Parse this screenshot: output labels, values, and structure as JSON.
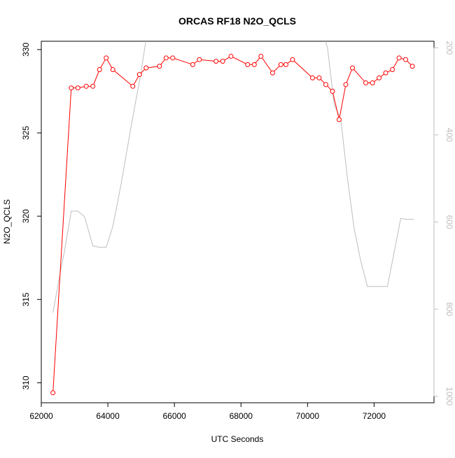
{
  "chart_data": {
    "type": "line",
    "title": "ORCAS RF18 N2O_QCLS",
    "xlabel": "UTC Seconds",
    "ylabel": "N2O_QCLS",
    "xlim": [
      62000,
      73800
    ],
    "ylim": [
      308.8,
      330.5
    ],
    "x_ticks": [
      62000,
      64000,
      66000,
      68000,
      70000,
      72000
    ],
    "y_ticks": [
      310,
      315,
      320,
      325,
      330
    ],
    "y2lim": [
      1015,
      185
    ],
    "y2_ticks": [
      200,
      400,
      600,
      800,
      1000
    ],
    "colors": {
      "primary": "#ff0000",
      "secondary": "#bebebe",
      "axis": "#000000"
    },
    "series": [
      {
        "axis": "left",
        "color": "#ff0000",
        "marker": "open-circle",
        "points": [
          [
            62350,
            309.4
          ],
          [
            62900,
            327.7
          ],
          [
            63100,
            327.7
          ],
          [
            63350,
            327.8
          ],
          [
            63550,
            327.8
          ],
          [
            63750,
            328.8
          ],
          [
            63950,
            329.5
          ],
          [
            64150,
            328.8
          ],
          [
            64750,
            327.8
          ],
          [
            64950,
            328.5
          ],
          [
            65150,
            328.9
          ],
          [
            65550,
            329.0
          ],
          [
            65750,
            329.5
          ],
          [
            65950,
            329.5
          ],
          [
            66550,
            329.1
          ],
          [
            66750,
            329.4
          ],
          [
            67250,
            329.3
          ],
          [
            67450,
            329.3
          ],
          [
            67700,
            329.6
          ],
          [
            68200,
            329.1
          ],
          [
            68400,
            329.1
          ],
          [
            68600,
            329.6
          ],
          [
            68950,
            328.6
          ],
          [
            69200,
            329.1
          ],
          [
            69350,
            329.1
          ],
          [
            69550,
            329.4
          ],
          [
            70150,
            328.3
          ],
          [
            70350,
            328.3
          ],
          [
            70550,
            327.9
          ],
          [
            70750,
            327.5
          ],
          [
            70950,
            325.8
          ],
          [
            71150,
            327.9
          ],
          [
            71350,
            328.9
          ],
          [
            71750,
            328.0
          ],
          [
            71950,
            328.0
          ],
          [
            72150,
            328.3
          ],
          [
            72350,
            328.6
          ],
          [
            72550,
            328.8
          ],
          [
            72750,
            329.5
          ],
          [
            72950,
            329.4
          ],
          [
            73150,
            329.0
          ]
        ]
      },
      {
        "axis": "right",
        "color": "#bebebe",
        "marker": "none",
        "points": [
          [
            62350,
            808
          ],
          [
            62500,
            745
          ],
          [
            62700,
            665
          ],
          [
            62900,
            575
          ],
          [
            63100,
            575
          ],
          [
            63300,
            588
          ],
          [
            63550,
            655
          ],
          [
            63750,
            658
          ],
          [
            63950,
            658
          ],
          [
            64150,
            610
          ],
          [
            64400,
            512
          ],
          [
            64700,
            380
          ],
          [
            65000,
            255
          ],
          [
            65250,
            130
          ],
          [
            65500,
            5
          ],
          [
            66000,
            -150
          ],
          [
            66500,
            155
          ],
          [
            66550,
            175
          ],
          [
            66750,
            175
          ],
          [
            66800,
            155
          ],
          [
            67000,
            -150
          ],
          [
            70000,
            -150
          ],
          [
            70400,
            150
          ],
          [
            70600,
            200
          ],
          [
            70800,
            330
          ],
          [
            71000,
            365
          ],
          [
            71200,
            500
          ],
          [
            71400,
            615
          ],
          [
            71600,
            690
          ],
          [
            71800,
            748
          ],
          [
            72000,
            748
          ],
          [
            72200,
            748
          ],
          [
            72400,
            748
          ],
          [
            72550,
            690
          ],
          [
            72800,
            592
          ],
          [
            73000,
            594
          ],
          [
            73200,
            594
          ]
        ]
      }
    ]
  }
}
